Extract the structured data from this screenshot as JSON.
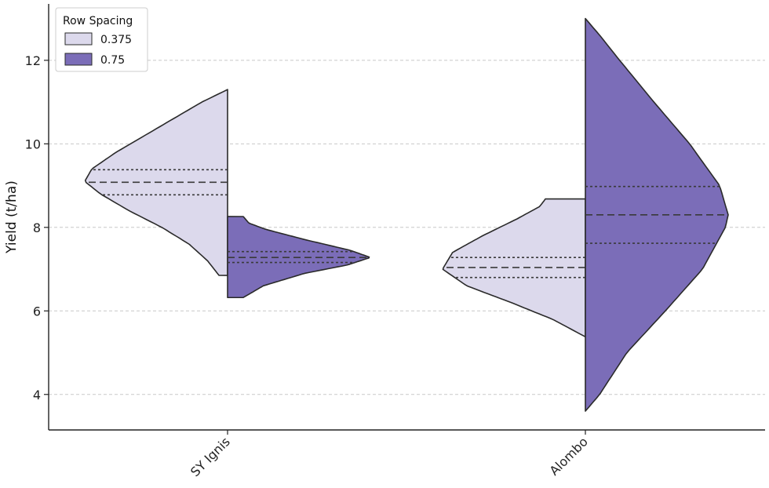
{
  "chart_data": {
    "type": "split-violin",
    "title": "",
    "xlabel": "",
    "ylabel": "Yield (t/ha)",
    "ylim": [
      3.15,
      13.35
    ],
    "yticks": [
      4,
      6,
      8,
      10,
      12
    ],
    "grid": "horizontal-dashed",
    "legend_position": "top-left",
    "legend_title": "Row Spacing",
    "categories": [
      "SY Ignis",
      "Alombo"
    ],
    "series": [
      {
        "name": "0.375",
        "color": "#dcd9ec",
        "side": "left",
        "groups": [
          {
            "category": "SY Ignis",
            "min": 6.85,
            "max": 11.3,
            "q1": 8.78,
            "median": 9.08,
            "q3": 9.38,
            "density": [
              [
                6.85,
                0.06
              ],
              [
                7.2,
                0.14
              ],
              [
                7.6,
                0.27
              ],
              [
                8.0,
                0.46
              ],
              [
                8.4,
                0.69
              ],
              [
                8.8,
                0.89
              ],
              [
                9.1,
                1.0
              ],
              [
                9.4,
                0.95
              ],
              [
                9.8,
                0.78
              ],
              [
                10.2,
                0.58
              ],
              [
                10.6,
                0.38
              ],
              [
                11.0,
                0.18
              ],
              [
                11.3,
                0.0
              ]
            ]
          },
          {
            "category": "Alombo",
            "min": 5.38,
            "max": 8.68,
            "q1": 6.8,
            "median": 7.04,
            "q3": 7.28,
            "density": [
              [
                5.38,
                0.0
              ],
              [
                5.8,
                0.23
              ],
              [
                6.2,
                0.52
              ],
              [
                6.6,
                0.83
              ],
              [
                7.0,
                1.0
              ],
              [
                7.4,
                0.93
              ],
              [
                7.8,
                0.72
              ],
              [
                8.2,
                0.48
              ],
              [
                8.5,
                0.32
              ],
              [
                8.68,
                0.28
              ]
            ]
          }
        ]
      },
      {
        "name": "0.75",
        "color": "#7b6db8",
        "side": "right",
        "groups": [
          {
            "category": "SY Ignis",
            "min": 6.32,
            "max": 8.26,
            "q1": 7.16,
            "median": 7.28,
            "q3": 7.42,
            "density": [
              [
                6.32,
                0.11
              ],
              [
                6.6,
                0.25
              ],
              [
                6.9,
                0.54
              ],
              [
                7.1,
                0.84
              ],
              [
                7.28,
                1.0
              ],
              [
                7.45,
                0.86
              ],
              [
                7.7,
                0.55
              ],
              [
                7.95,
                0.27
              ],
              [
                8.1,
                0.15
              ],
              [
                8.26,
                0.11
              ]
            ]
          },
          {
            "category": "Alombo",
            "min": 3.6,
            "max": 13.0,
            "q1": 7.62,
            "median": 8.3,
            "q3": 8.98,
            "density": [
              [
                3.6,
                0.0
              ],
              [
                4.0,
                0.1
              ],
              [
                5.0,
                0.29
              ],
              [
                6.0,
                0.56
              ],
              [
                7.0,
                0.82
              ],
              [
                8.0,
                0.98
              ],
              [
                8.3,
                1.0
              ],
              [
                9.0,
                0.94
              ],
              [
                10.0,
                0.73
              ],
              [
                11.0,
                0.48
              ],
              [
                12.0,
                0.24
              ],
              [
                12.6,
                0.1
              ],
              [
                13.0,
                0.0
              ]
            ]
          }
        ]
      }
    ]
  }
}
